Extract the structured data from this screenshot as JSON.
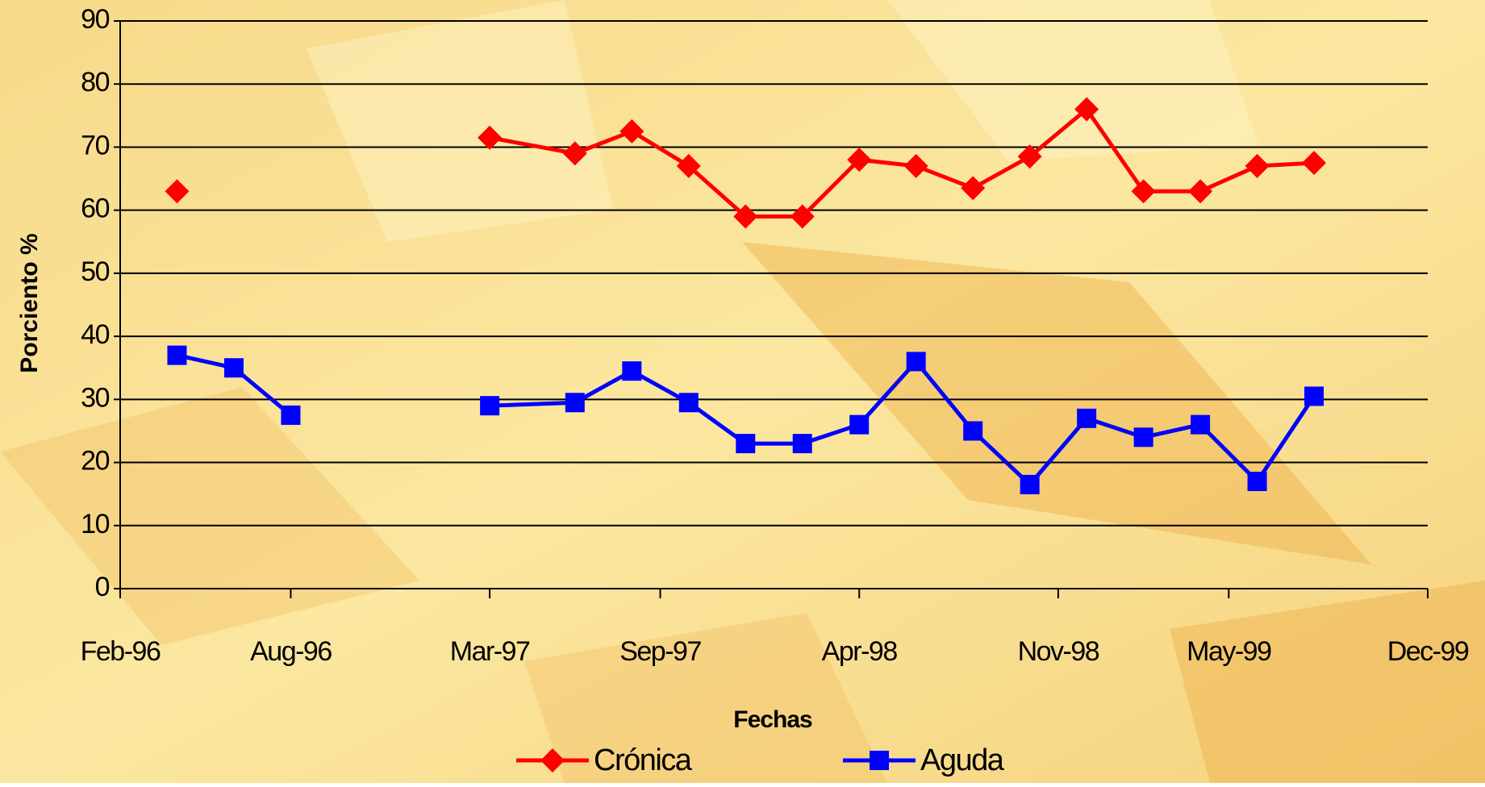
{
  "chart_data": {
    "type": "line",
    "x_label": "Fechas",
    "y_label": "Porciento %",
    "x": [
      "1996-04",
      "1996-06",
      "1996-08",
      "1996-11",
      "1997-03",
      "1997-06",
      "1997-08",
      "1997-10",
      "1997-12",
      "1998-02",
      "1998-04",
      "1998-06",
      "1998-08",
      "1998-10",
      "1998-12",
      "1999-02",
      "1999-04",
      "1999-06",
      "1999-08"
    ],
    "series": [
      {
        "name": "Crónica",
        "color": "#ff0000",
        "marker": "diamond",
        "values": [
          63,
          null,
          null,
          null,
          71.5,
          69,
          72.5,
          67,
          59,
          59,
          68,
          67,
          63.5,
          68.5,
          76,
          63,
          63,
          67,
          67.5
        ]
      },
      {
        "name": "Aguda",
        "color": "#0000ff",
        "marker": "square",
        "values": [
          37,
          35,
          27.5,
          null,
          29,
          29.5,
          34.5,
          29.5,
          23,
          23,
          26,
          36,
          25,
          16.5,
          27,
          24,
          26,
          17,
          30.5
        ]
      }
    ],
    "xlim": [
      "1996-02",
      "1999-12"
    ],
    "xticks": [
      {
        "value": "1996-02",
        "label": "Feb-96"
      },
      {
        "value": "1996-08",
        "label": "Aug-96"
      },
      {
        "value": "1997-03",
        "label": "Mar-97"
      },
      {
        "value": "1997-09",
        "label": "Sep-97"
      },
      {
        "value": "1998-04",
        "label": "Apr-98"
      },
      {
        "value": "1998-11",
        "label": "Nov-98"
      },
      {
        "value": "1999-05",
        "label": "May-99"
      },
      {
        "value": "1999-12",
        "label": "Dec-99"
      }
    ],
    "ylim": [
      0,
      90
    ],
    "yticks": [
      0,
      10,
      20,
      30,
      40,
      50,
      60,
      70,
      80,
      90
    ],
    "grid": true
  }
}
